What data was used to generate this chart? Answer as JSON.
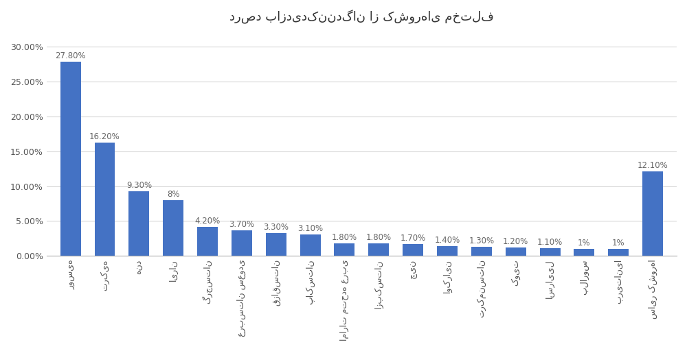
{
  "title": "درصد بازدیدکنندگان از کشورهای مختلف",
  "categories": [
    "روسیه",
    "ترکیه",
    "هند",
    "ایران",
    "گرجستان",
    "عربستان سعودی",
    "قزاقستان",
    "پاکستان",
    "امارات متحده عربی",
    "ازبکستان",
    "چین",
    "اوکراین",
    "ترکمنستان",
    "کویت",
    "اسراییل",
    "بلاروس",
    "بریتانیا",
    "سایر کشورها"
  ],
  "values": [
    27.8,
    16.2,
    9.3,
    8.0,
    4.2,
    3.7,
    3.3,
    3.1,
    1.8,
    1.8,
    1.7,
    1.4,
    1.3,
    1.2,
    1.1,
    1.0,
    1.0,
    12.1
  ],
  "labels": [
    "27.80%",
    "16.20%",
    "9.30%",
    "8%",
    "4.20%",
    "3.70%",
    "3.30%",
    "3.10%",
    "1.80%",
    "1.80%",
    "1.70%",
    "1.40%",
    "1.30%",
    "1.20%",
    "1.10%",
    "1%",
    "1%",
    "12.10%"
  ],
  "bar_color": "#4472C4",
  "background_color": "#FFFFFF",
  "title_fontsize": 13,
  "label_fontsize": 8.5,
  "tick_fontsize": 9,
  "ylim": [
    0,
    32
  ],
  "yticks": [
    0,
    5,
    10,
    15,
    20,
    25,
    30
  ],
  "ytick_labels": [
    "0.00%",
    "5.00%",
    "10.00%",
    "15.00%",
    "20.00%",
    "25.00%",
    "30.00%"
  ]
}
